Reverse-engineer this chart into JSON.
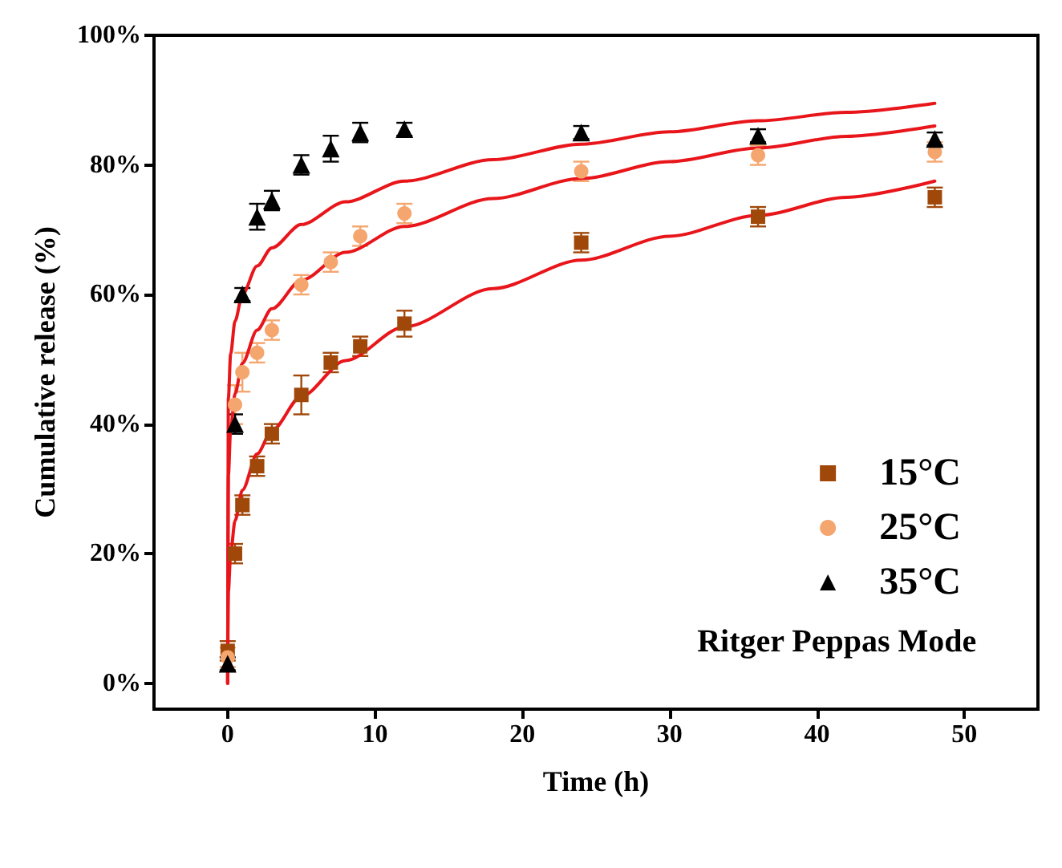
{
  "chart_data": {
    "type": "scatter",
    "xlabel": "Time (h)",
    "ylabel": "Cumulative release (%)",
    "x": [
      0,
      0.5,
      1,
      2,
      3,
      5,
      7,
      9,
      12,
      24,
      36,
      48
    ],
    "xlim": [
      -5,
      55
    ],
    "xticks": [
      0,
      10,
      20,
      30,
      40,
      50
    ],
    "ylim": [
      -4,
      100
    ],
    "yticks": [
      {
        "value": 0,
        "label": "0%"
      },
      {
        "value": 20,
        "label": "20%"
      },
      {
        "value": 40,
        "label": "40%"
      },
      {
        "value": 60,
        "label": "60%"
      },
      {
        "value": 80,
        "label": "80%"
      },
      {
        "value": 100,
        "label": "100%"
      }
    ],
    "grid": false,
    "legend": "right",
    "series": [
      {
        "name": "15°C",
        "color": "#a0480a",
        "marker": "square",
        "values": [
          5,
          20,
          27.5,
          33.5,
          38.5,
          44.5,
          49.5,
          52,
          55.5,
          68,
          72,
          75
        ],
        "errors": [
          1.5,
          1.5,
          1.5,
          1.5,
          1.5,
          3,
          1.5,
          1.5,
          2,
          1.5,
          1.5,
          1.5
        ]
      },
      {
        "name": "25°C",
        "color": "#f5a66e",
        "marker": "circle",
        "values": [
          4,
          43,
          48,
          51,
          54.5,
          61.5,
          65,
          69,
          72.5,
          79,
          81.5,
          82
        ],
        "errors": [
          1.5,
          3,
          3,
          1.5,
          1.5,
          1.5,
          1.5,
          1.5,
          1.5,
          1.5,
          1.5,
          1.5
        ]
      },
      {
        "name": "35°C",
        "color": "#000000",
        "marker": "triangle",
        "values": [
          3,
          40,
          60,
          72,
          74.5,
          80,
          82.5,
          85,
          85.5,
          85,
          84.5,
          84
        ],
        "errors": [
          1,
          1.5,
          1,
          2,
          1.5,
          1.5,
          2,
          1.5,
          1,
          1,
          1,
          1
        ]
      },
      {
        "type": "line",
        "color": "#e8161b",
        "marker": "none",
        "x": [
          0,
          0.05,
          0.2,
          0.5,
          1,
          2,
          3,
          5,
          8,
          12,
          18,
          24,
          30,
          36,
          42,
          48
        ],
        "values": [
          0,
          14.2,
          20,
          25.1,
          29.8,
          35.4,
          39,
          44.3,
          49.8,
          55,
          60.9,
          65.3,
          69,
          72.2,
          75,
          77.5
        ]
      },
      {
        "type": "line",
        "color": "#e8161b",
        "marker": "none",
        "x": [
          0,
          0.05,
          0.2,
          0.5,
          1,
          2,
          3,
          5,
          8,
          12,
          18,
          24,
          30,
          36,
          42,
          48
        ],
        "values": [
          0,
          32.1,
          39.2,
          44.7,
          49.4,
          54.5,
          57.8,
          62.2,
          66.5,
          70.5,
          74.8,
          77.9,
          80.5,
          82.6,
          84.4,
          86
        ]
      },
      {
        "type": "line",
        "color": "#e8161b",
        "marker": "none",
        "x": [
          0,
          0.05,
          0.2,
          0.5,
          1,
          2,
          3,
          5,
          8,
          12,
          18,
          24,
          30,
          36,
          42,
          48
        ],
        "values": [
          0,
          44,
          50.8,
          55.9,
          60,
          64.4,
          67.2,
          70.8,
          74.3,
          77.5,
          80.8,
          83.2,
          85.1,
          86.8,
          88.1,
          89.5
        ]
      }
    ],
    "annotations": [
      "Ritger Peppas Mode"
    ]
  }
}
